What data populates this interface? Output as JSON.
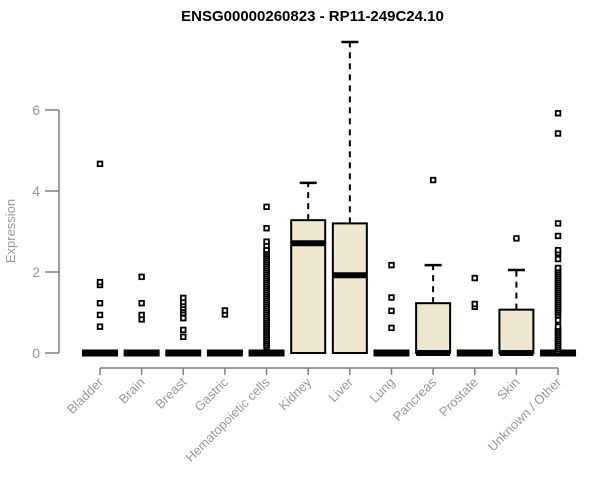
{
  "chart_data": {
    "type": "boxplot",
    "title": "ENSG00000260823 - RP11-249C24.10",
    "xlabel": "",
    "ylabel": "Expression",
    "y_ticks": [
      0,
      2,
      4,
      6
    ],
    "ylim": [
      0,
      7.8
    ],
    "grid": false,
    "categories": [
      "Bladder",
      "Brain",
      "Breast",
      "Gastric",
      "Hematopoietic cells",
      "Kidney",
      "Liver",
      "Lung",
      "Pancreas",
      "Prostate",
      "Skin",
      "Unknown / Other"
    ],
    "series": [
      {
        "name": "Bladder",
        "q1": 0,
        "median": 0,
        "q3": 0,
        "whisker_low": 0,
        "whisker_high": 0,
        "outliers": [
          0.65,
          0.94,
          1.23,
          1.68,
          1.75,
          4.67
        ]
      },
      {
        "name": "Brain",
        "q1": 0,
        "median": 0,
        "q3": 0,
        "whisker_low": 0,
        "whisker_high": 0,
        "outliers": [
          0.83,
          0.94,
          1.23,
          1.88
        ]
      },
      {
        "name": "Breast",
        "q1": 0,
        "median": 0,
        "q3": 0,
        "whisker_low": 0,
        "whisker_high": 0,
        "outliers": [
          0.4,
          0.57,
          0.86,
          0.99,
          1.06,
          1.12,
          1.19,
          1.26,
          1.36
        ]
      },
      {
        "name": "Gastric",
        "q1": 0,
        "median": 0,
        "q3": 0,
        "whisker_low": 0,
        "whisker_high": 0,
        "outliers": [
          0.95,
          1.05
        ]
      },
      {
        "name": "Hematopoietic cells",
        "q1": 0,
        "median": 0,
        "q3": 0,
        "whisker_low": 0,
        "whisker_high": 0,
        "outliers": [
          0.15,
          0.2,
          0.25,
          0.3,
          0.35,
          0.4,
          0.45,
          0.5,
          0.55,
          0.6,
          0.65,
          0.7,
          0.75,
          0.8,
          0.85,
          0.9,
          0.95,
          1.0,
          1.05,
          1.1,
          1.15,
          1.2,
          1.25,
          1.3,
          1.35,
          1.4,
          1.45,
          1.5,
          1.55,
          1.6,
          1.65,
          1.7,
          1.75,
          1.8,
          1.85,
          1.9,
          1.95,
          2.0,
          2.05,
          2.1,
          2.15,
          2.2,
          2.25,
          2.3,
          2.35,
          2.4,
          2.45,
          2.5,
          2.55,
          2.65,
          2.75,
          3.08,
          3.61
        ]
      },
      {
        "name": "Kidney",
        "q1": 0,
        "median": 2.71,
        "q3": 3.28,
        "whisker_low": 0,
        "whisker_high": 4.2,
        "outliers": []
      },
      {
        "name": "Liver",
        "q1": 0,
        "median": 1.92,
        "q3": 3.2,
        "whisker_low": 0,
        "whisker_high": 7.68,
        "outliers": []
      },
      {
        "name": "Lung",
        "q1": 0,
        "median": 0,
        "q3": 0,
        "whisker_low": 0,
        "whisker_high": 0,
        "outliers": [
          0.62,
          1.04,
          1.37,
          2.17
        ]
      },
      {
        "name": "Pancreas",
        "q1": 0,
        "median": 0,
        "q3": 1.23,
        "whisker_low": 0,
        "whisker_high": 2.17,
        "outliers": [
          4.27
        ]
      },
      {
        "name": "Prostate",
        "q1": 0,
        "median": 0,
        "q3": 0,
        "whisker_low": 0,
        "whisker_high": 0,
        "outliers": [
          1.14,
          1.21,
          1.85
        ]
      },
      {
        "name": "Skin",
        "q1": 0,
        "median": 0,
        "q3": 1.07,
        "whisker_low": 0,
        "whisker_high": 2.05,
        "outliers": [
          2.83
        ]
      },
      {
        "name": "Unknown / Other",
        "q1": 0,
        "median": 0,
        "q3": 0,
        "whisker_low": 0,
        "whisker_high": 0,
        "outliers": [
          0.05,
          0.1,
          0.15,
          0.2,
          0.25,
          0.3,
          0.35,
          0.4,
          0.45,
          0.5,
          0.55,
          0.6,
          0.65,
          0.81,
          0.94,
          1.0,
          1.05,
          1.1,
          1.15,
          1.2,
          1.25,
          1.3,
          1.35,
          1.4,
          1.45,
          1.5,
          1.55,
          1.6,
          1.65,
          1.7,
          1.75,
          1.8,
          1.85,
          1.9,
          1.95,
          2.0,
          2.05,
          2.1,
          2.32,
          2.47,
          2.54,
          2.89,
          3.2,
          5.42,
          5.92
        ]
      }
    ],
    "legend": null
  },
  "colors": {
    "box_fill": "#EDE8CE",
    "box_stroke": "#000000",
    "axis": "#7F7F7F",
    "tick_label": "#999999",
    "title": "#000000",
    "background": "#FFFFFF"
  }
}
